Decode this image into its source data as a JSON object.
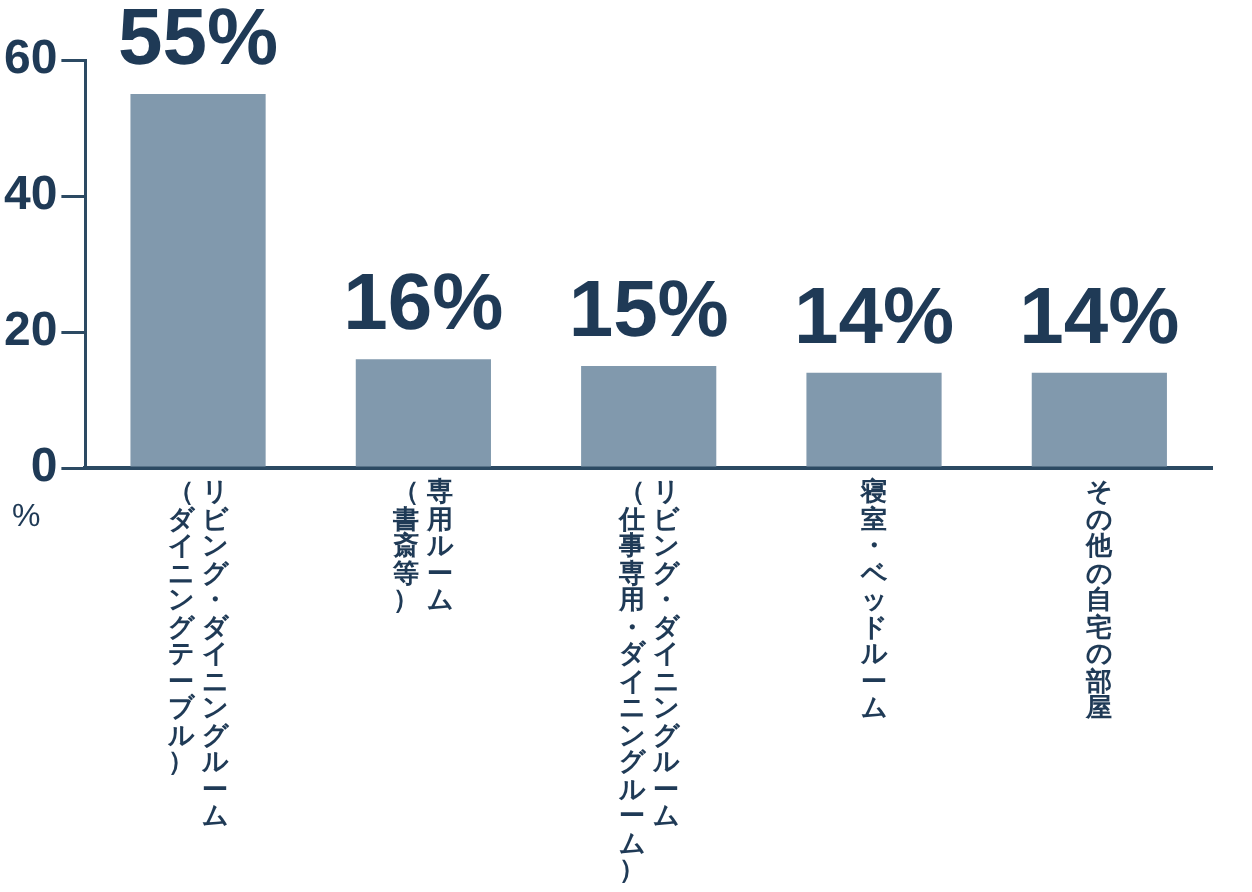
{
  "chart_data": {
    "type": "bar",
    "ylabel": "%",
    "categories": [
      "リビング・ダイニングルーム（ダイニングテーブル）",
      "専用ルーム（書斎等）",
      "リビング・ダイニングルーム（仕事専用・ダイニングルーム）",
      "寝室・ベッドルーム",
      "その他の自宅の部屋"
    ],
    "values": [
      55,
      16,
      15,
      14,
      14
    ],
    "value_labels": [
      "55%",
      "16%",
      "15%",
      "14%",
      "14%"
    ],
    "color": "#8199ad",
    "ylim": [
      0,
      60
    ],
    "yticks": [
      0,
      20,
      40,
      60
    ],
    "grid": false,
    "legend": false
  }
}
